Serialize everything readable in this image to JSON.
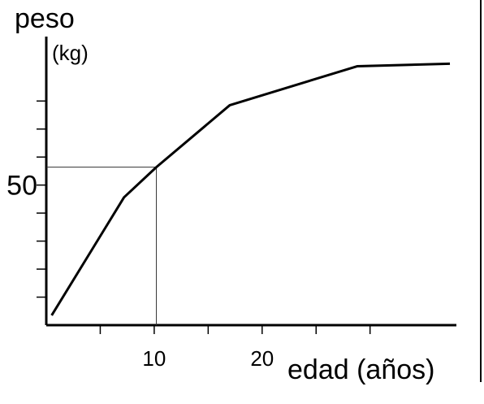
{
  "chart_data": {
    "type": "line",
    "y_label_line1": "peso",
    "y_label_line2": "(kg)",
    "x_label": "edad (años)",
    "x": [
      0.5,
      7.2,
      10.2,
      17,
      28.8,
      37.4
    ],
    "series": [
      {
        "color": "#000000",
        "values": [
          3.5,
          45.6,
          56.4,
          78.5,
          92.4,
          93.3
        ]
      }
    ],
    "guide": {
      "x": 10.2,
      "y": 56.4
    },
    "xlim": [
      0,
      38
    ],
    "ylim": [
      0,
      103
    ],
    "xticks": [
      {
        "value": 5,
        "label": null
      },
      10,
      {
        "value": 15,
        "label": null
      },
      20,
      {
        "value": 25,
        "label": null
      },
      {
        "value": 30,
        "label": null
      }
    ],
    "yticks": [
      {
        "value": 10,
        "label": null
      },
      {
        "value": 20,
        "label": null
      },
      {
        "value": 30,
        "label": null
      },
      {
        "value": 40,
        "label": null
      },
      50,
      {
        "value": 60,
        "label": null
      },
      {
        "value": 70,
        "label": null
      },
      {
        "value": 80,
        "label": null
      }
    ],
    "grid": false
  }
}
